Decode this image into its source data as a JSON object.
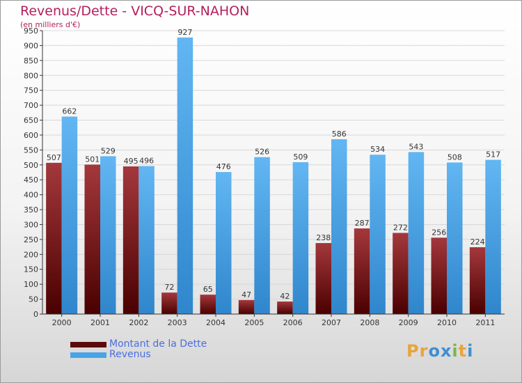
{
  "chart_data": {
    "type": "bar",
    "title": "Revenus/Dette - VICQ-SUR-NAHON",
    "subtitle": "(en milliers d'€)",
    "xlabel": "",
    "ylabel": "",
    "ylim": [
      0,
      950
    ],
    "ytick_step": 50,
    "grid": true,
    "categories": [
      "2000",
      "2001",
      "2002",
      "2003",
      "2004",
      "2005",
      "2006",
      "2007",
      "2008",
      "2009",
      "2010",
      "2011"
    ],
    "series": [
      {
        "name": "Montant de la Dette",
        "color": "#7a1216",
        "values": [
          507,
          501,
          495,
          72,
          65,
          47,
          42,
          238,
          287,
          272,
          256,
          224
        ]
      },
      {
        "name": "Revenus",
        "color": "#4aa3e6",
        "values": [
          662,
          529,
          496,
          927,
          476,
          526,
          509,
          586,
          534,
          543,
          508,
          517
        ]
      }
    ]
  },
  "legend": {
    "items": [
      {
        "label": "Montant de la Dette",
        "color": "#5a0a0a"
      },
      {
        "label": "Revenus",
        "color": "#4aa3e6"
      }
    ]
  },
  "logo": {
    "text": "Proxiti"
  }
}
